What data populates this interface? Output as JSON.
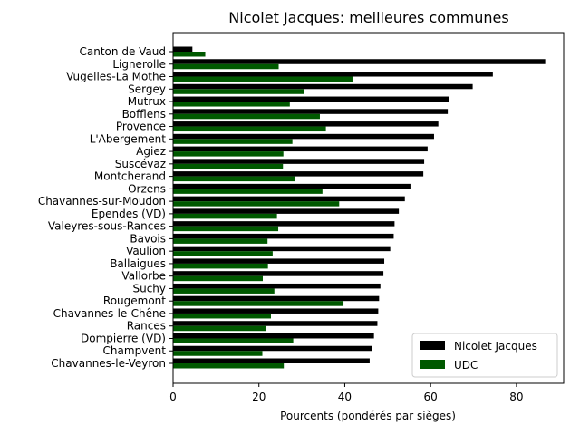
{
  "chart_data": {
    "type": "bar",
    "orientation": "horizontal",
    "title": "Nicolet Jacques: meilleures communes",
    "xlabel": "Pourcents (pondérés par sièges)",
    "ylabel": "",
    "xlim": [
      0,
      91
    ],
    "xticks": [
      0,
      20,
      40,
      60,
      80
    ],
    "grid": false,
    "legend_position": "bottom-right",
    "categories": [
      "Canton de Vaud",
      "Lignerolle",
      "Vugelles-La Mothe",
      "Sergey",
      "Mutrux",
      "Bofflens",
      "Provence",
      "L'Abergement",
      "Agiez",
      "Suscévaz",
      "Montcherand",
      "Orzens",
      "Chavannes-sur-Moudon",
      "Ependes (VD)",
      "Valeyres-sous-Rances",
      "Bavois",
      "Vaulion",
      "Ballaigues",
      "Vallorbe",
      "Suchy",
      "Rougemont",
      "Chavannes-le-Chêne",
      "Rances",
      "Dompierre (VD)",
      "Champvent",
      "Chavannes-le-Veyron"
    ],
    "series": [
      {
        "name": "Nicolet Jacques",
        "color": "#000000",
        "values": [
          4.5,
          86.7,
          74.5,
          69.8,
          64.2,
          64.0,
          61.8,
          60.8,
          59.3,
          58.5,
          58.3,
          55.3,
          54.0,
          52.6,
          51.6,
          51.4,
          50.6,
          49.2,
          49.0,
          48.3,
          48.0,
          47.8,
          47.6,
          46.8,
          46.3,
          45.8
        ]
      },
      {
        "name": "UDC",
        "color": "#005900",
        "values": [
          7.5,
          24.6,
          41.8,
          30.6,
          27.2,
          34.2,
          35.6,
          27.8,
          25.7,
          25.6,
          28.5,
          34.8,
          38.7,
          24.2,
          24.5,
          22.0,
          23.2,
          22.1,
          20.9,
          23.6,
          39.7,
          22.8,
          21.6,
          28.0,
          20.8,
          25.8
        ]
      }
    ]
  }
}
